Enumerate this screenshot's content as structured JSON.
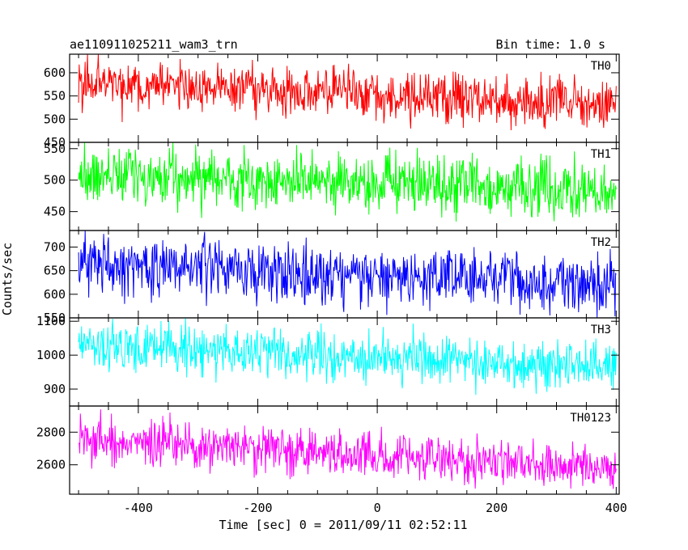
{
  "title_left": "ae110911025211_wam3_trn",
  "title_right": "Bin time: 1.0 s",
  "ylabel": "Counts/sec",
  "xlabel": "Time [sec] 0 = 2011/09/11 02:52:11",
  "chart_data": [
    {
      "type": "line",
      "name": "TH0",
      "color": "#ff0000",
      "xlim": [
        -515,
        405
      ],
      "ylim": [
        450,
        640
      ],
      "yticks": [
        450,
        500,
        550,
        600
      ],
      "x_range": [
        -500,
        400
      ],
      "mean_start": 580,
      "mean_end": 530,
      "noise": 30
    },
    {
      "type": "line",
      "name": "TH1",
      "color": "#00ff00",
      "xlim": [
        -515,
        405
      ],
      "ylim": [
        420,
        560
      ],
      "yticks": [
        450,
        500,
        550
      ],
      "x_range": [
        -500,
        400
      ],
      "mean_start": 510,
      "mean_end": 480,
      "noise": 24
    },
    {
      "type": "line",
      "name": "TH2",
      "color": "#0000ff",
      "xlim": [
        -515,
        405
      ],
      "ylim": [
        550,
        735
      ],
      "yticks": [
        550,
        600,
        650,
        700
      ],
      "x_range": [
        -500,
        400
      ],
      "mean_start": 665,
      "mean_end": 620,
      "noise": 33
    },
    {
      "type": "line",
      "name": "TH3",
      "color": "#00ffff",
      "xlim": [
        -515,
        405
      ],
      "ylim": [
        850,
        1110
      ],
      "yticks": [
        900,
        1000,
        1100
      ],
      "x_range": [
        -500,
        400
      ],
      "mean_start": 1030,
      "mean_end": 965,
      "noise": 38
    },
    {
      "type": "line",
      "name": "TH0123",
      "color": "#ff00ff",
      "xlim": [
        -515,
        405
      ],
      "ylim": [
        2420,
        2960
      ],
      "yticks": [
        2600,
        2800
      ],
      "x_range": [
        -500,
        400
      ],
      "mean_start": 2750,
      "mean_end": 2580,
      "noise": 75
    }
  ],
  "xticks": [
    -400,
    -200,
    0,
    200,
    400
  ]
}
